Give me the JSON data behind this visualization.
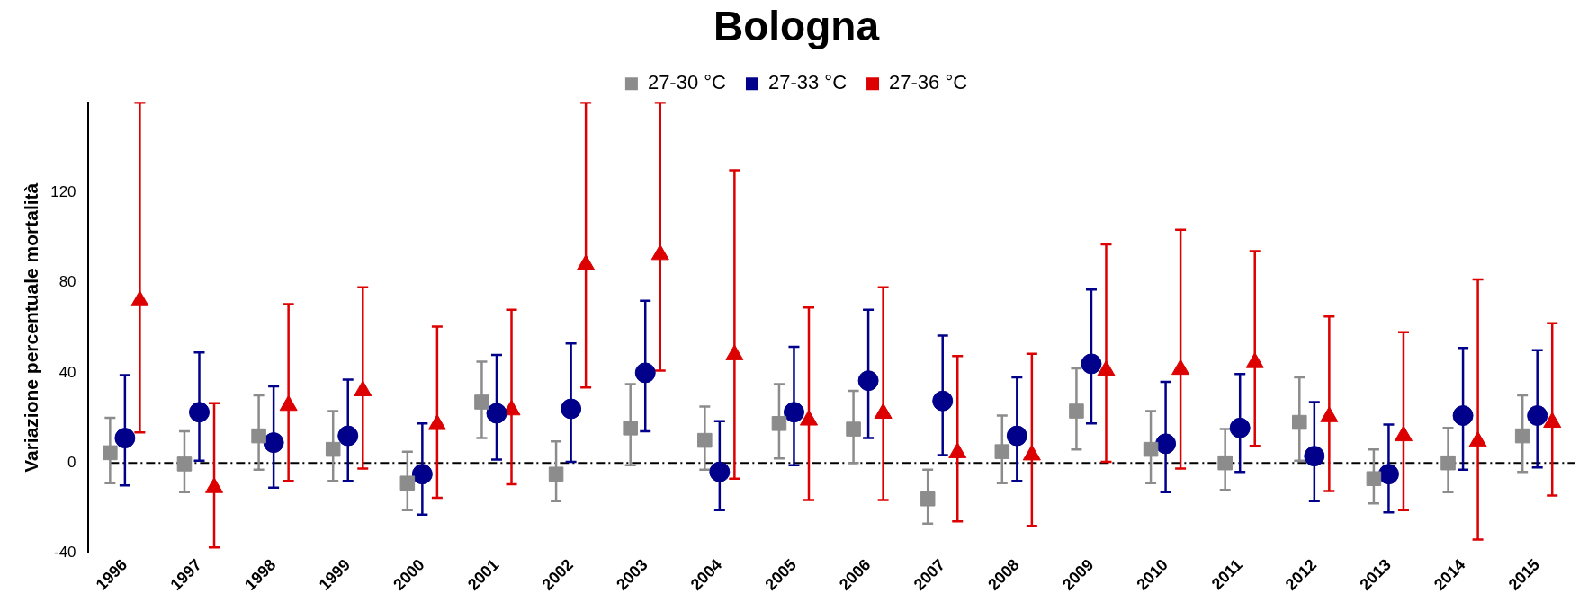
{
  "chart_data": {
    "type": "scatter",
    "title": "Bologna",
    "ylabel": "Variazione percentuale mortalità",
    "categories": [
      "1996",
      "1997",
      "1998",
      "1999",
      "2000",
      "2001",
      "2002",
      "2003",
      "2004",
      "2005",
      "2006",
      "2007",
      "2008",
      "2009",
      "2010",
      "2011",
      "2012",
      "2013",
      "2014",
      "2015"
    ],
    "series": [
      {
        "name": "27-30 °C",
        "color": "#8c8c8c",
        "marker": "square",
        "values": [
          4.5,
          -0.5,
          12,
          6,
          -9,
          27,
          -5,
          15.5,
          10,
          17.5,
          15,
          -16,
          5,
          23,
          6,
          0,
          18,
          -7,
          0,
          12
        ],
        "errors": [
          [
            -9,
            20
          ],
          [
            -13,
            14
          ],
          [
            -3,
            30
          ],
          [
            -8,
            23
          ],
          [
            -21,
            5
          ],
          [
            11,
            45
          ],
          [
            -17,
            9.5
          ],
          [
            -1,
            35
          ],
          [
            -3,
            25
          ],
          [
            2,
            35
          ],
          [
            0,
            32
          ],
          [
            -27,
            -3
          ],
          [
            -9,
            21
          ],
          [
            6,
            42
          ],
          [
            -9,
            23
          ],
          [
            -12,
            15
          ],
          [
            1,
            38
          ],
          [
            -18,
            6
          ],
          [
            -13,
            15.5
          ],
          [
            -4,
            30
          ]
        ]
      },
      {
        "name": "27-33 °C",
        "color": "#00008b",
        "marker": "circle",
        "values": [
          11,
          22.5,
          9,
          12,
          -5,
          22,
          24,
          40,
          -4,
          22.5,
          36.5,
          27.5,
          12,
          44,
          8.5,
          15.5,
          3,
          -5,
          21,
          21
        ],
        "errors": [
          [
            -10,
            39
          ],
          [
            1,
            49
          ],
          [
            -11,
            34
          ],
          [
            -8,
            37
          ],
          [
            -23,
            17.5
          ],
          [
            1.5,
            48
          ],
          [
            0.5,
            53
          ],
          [
            14,
            72
          ],
          [
            -21,
            18.5
          ],
          [
            -1,
            51.5
          ],
          [
            11,
            68
          ],
          [
            3.5,
            56.5
          ],
          [
            -8,
            38
          ],
          [
            17.5,
            77
          ],
          [
            -13,
            36
          ],
          [
            -4,
            39.5
          ],
          [
            -17,
            27
          ],
          [
            -22,
            17
          ],
          [
            -3,
            51
          ],
          [
            -2,
            50
          ]
        ]
      },
      {
        "name": "27-36 °C",
        "color": "#dd0000",
        "marker": "triangle",
        "values": [
          72,
          -11,
          25.5,
          32,
          17,
          23.5,
          88,
          92.5,
          48,
          19,
          22,
          4.5,
          3.5,
          41,
          41.5,
          44.5,
          20.5,
          12,
          9.5,
          18
        ],
        "errors": [
          [
            13.5,
            160
          ],
          [
            -37.5,
            26.5
          ],
          [
            -8,
            70.5
          ],
          [
            -2.5,
            78
          ],
          [
            -15.5,
            60.5
          ],
          [
            -9.5,
            68
          ],
          [
            33.5,
            160
          ],
          [
            41,
            160
          ],
          [
            -7,
            130
          ],
          [
            -16.5,
            69
          ],
          [
            -16.5,
            78
          ],
          [
            -26,
            47.5
          ],
          [
            -28,
            48.5
          ],
          [
            0.5,
            97
          ],
          [
            -2.5,
            103.5
          ],
          [
            7.5,
            94
          ],
          [
            -12.5,
            65
          ],
          [
            -21,
            58
          ],
          [
            -34,
            81.5
          ],
          [
            -14.5,
            62
          ]
        ]
      }
    ],
    "ylim": [
      -40,
      160
    ],
    "yticks": [
      -40,
      0,
      40,
      80,
      120
    ],
    "ref_lines": [
      {
        "axis": "y",
        "value": 0,
        "color": "#000000",
        "line_style": "dashed"
      }
    ],
    "grid": false,
    "legend": "top"
  }
}
